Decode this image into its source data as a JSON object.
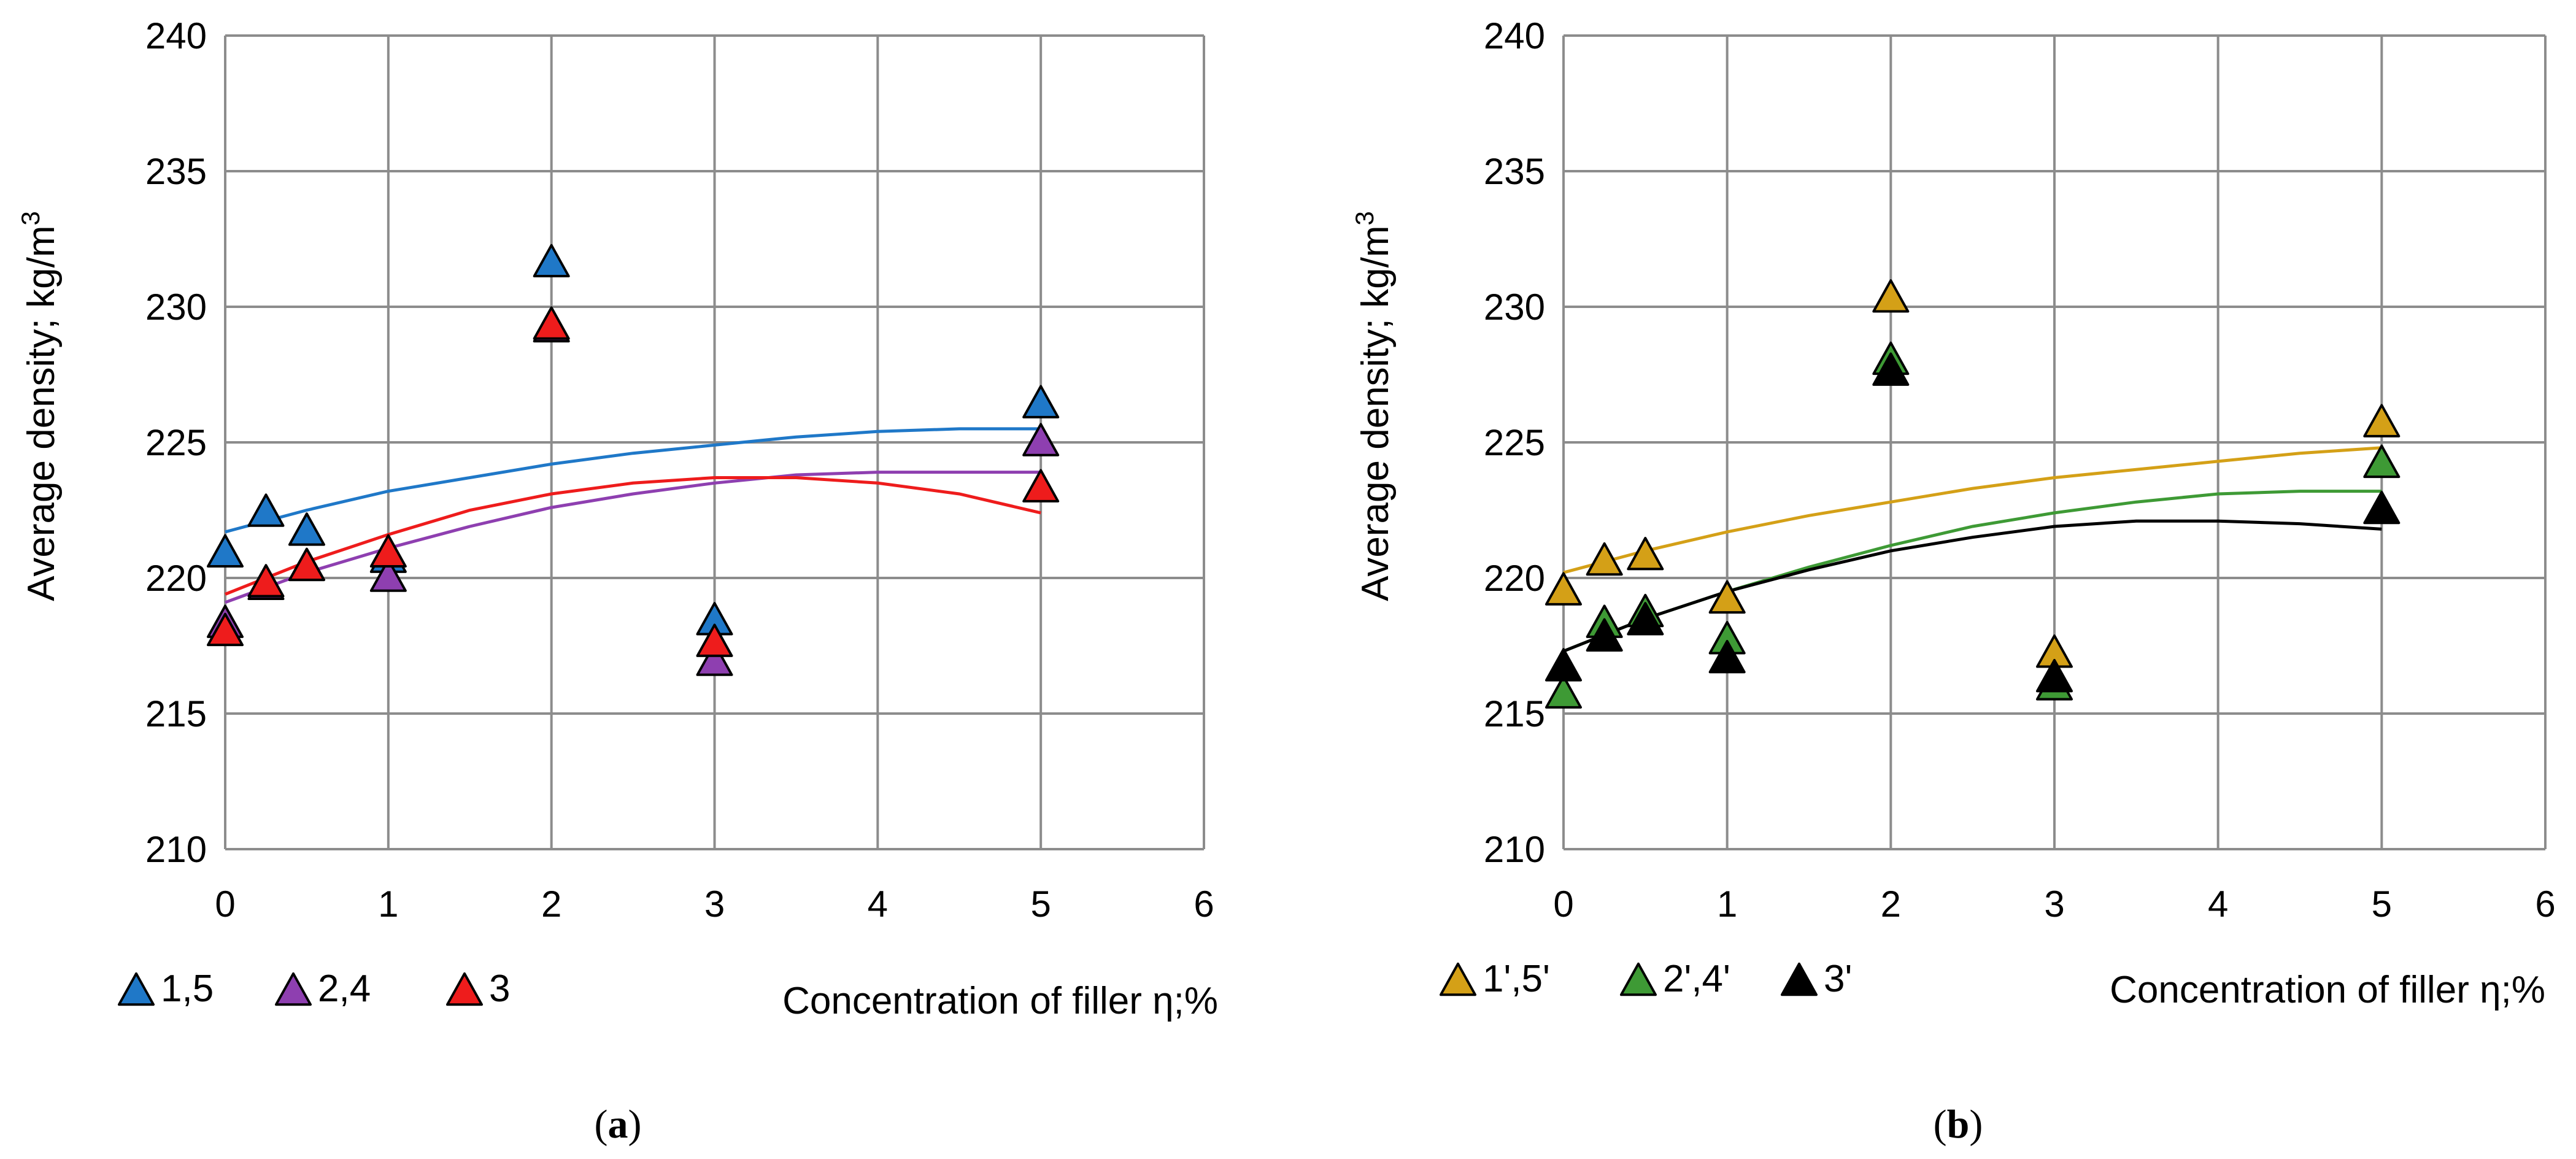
{
  "chart_data": [
    {
      "id": "a",
      "type": "scatter",
      "caption_open": "(",
      "caption_letter": "a",
      "caption_close": ")",
      "ylabel": "Average density; kg/m",
      "ylabel_sup": "3",
      "xlabel": "Concentration of filler η;%",
      "xlim": [
        0,
        6
      ],
      "ylim": [
        210,
        240
      ],
      "xticks": [
        0,
        1,
        2,
        3,
        4,
        5,
        6
      ],
      "yticks": [
        210,
        215,
        220,
        225,
        230,
        235,
        240
      ],
      "grid": true,
      "legend_position": "bottom",
      "series": [
        {
          "name": "1,5",
          "color": "#1f78c8",
          "x": [
            0,
            0.25,
            0.5,
            1,
            2,
            3,
            5
          ],
          "y": [
            221.0,
            222.5,
            221.8,
            220.8,
            231.7,
            218.5,
            226.5
          ],
          "trend_x": [
            0,
            0.5,
            1,
            1.5,
            2,
            2.5,
            3,
            3.5,
            4,
            4.5,
            5
          ],
          "trend_y": [
            221.7,
            222.5,
            223.2,
            223.7,
            224.2,
            224.6,
            224.9,
            225.2,
            225.4,
            225.5,
            225.5
          ]
        },
        {
          "name": "2,4",
          "color": "#8e3fb0",
          "x": [
            0,
            0.25,
            0.5,
            1,
            2,
            3,
            5
          ],
          "y": [
            218.4,
            219.8,
            220.5,
            220.1,
            229.3,
            217.0,
            225.1
          ],
          "trend_x": [
            0,
            0.5,
            1,
            1.5,
            2,
            2.5,
            3,
            3.5,
            4,
            4.5,
            5
          ],
          "trend_y": [
            219.1,
            220.2,
            221.1,
            221.9,
            222.6,
            223.1,
            223.5,
            223.8,
            223.9,
            223.9,
            223.9
          ]
        },
        {
          "name": "3",
          "color": "#ee1c1c",
          "x": [
            0,
            0.25,
            0.5,
            1,
            2,
            3,
            5
          ],
          "y": [
            218.1,
            219.9,
            220.5,
            221.0,
            229.4,
            217.7,
            223.4
          ],
          "trend_x": [
            0,
            0.5,
            1,
            1.5,
            2,
            2.5,
            3,
            3.5,
            4,
            4.5,
            5
          ],
          "trend_y": [
            219.4,
            220.6,
            221.6,
            222.5,
            223.1,
            223.5,
            223.7,
            223.7,
            223.5,
            223.1,
            222.4
          ]
        }
      ]
    },
    {
      "id": "b",
      "type": "scatter",
      "caption_open": "(",
      "caption_letter": "b",
      "caption_close": ")",
      "ylabel": "Average density; kg/m",
      "ylabel_sup": "3",
      "xlabel": "Concentration of filler η;%",
      "xlim": [
        0,
        6
      ],
      "ylim": [
        210,
        240
      ],
      "xticks": [
        0,
        1,
        2,
        3,
        4,
        5,
        6
      ],
      "yticks": [
        210,
        215,
        220,
        225,
        230,
        235,
        240
      ],
      "grid": true,
      "legend_position": "bottom",
      "series": [
        {
          "name": "1',5'",
          "color": "#d4a017",
          "x": [
            0,
            0.25,
            0.5,
            1,
            2,
            3,
            5
          ],
          "y": [
            219.6,
            220.7,
            220.9,
            219.3,
            230.4,
            217.3,
            225.8
          ],
          "trend_x": [
            0,
            0.5,
            1,
            1.5,
            2,
            2.5,
            3,
            3.5,
            4,
            4.5,
            5
          ],
          "trend_y": [
            220.2,
            221.0,
            221.7,
            222.3,
            222.8,
            223.3,
            223.7,
            224.0,
            224.3,
            224.6,
            224.8
          ]
        },
        {
          "name": "2',4'",
          "color": "#3e9a35",
          "x": [
            0,
            0.25,
            0.5,
            1,
            2,
            3,
            5
          ],
          "y": [
            215.8,
            218.4,
            218.8,
            217.8,
            228.1,
            216.1,
            224.3
          ],
          "trend_x": [
            0,
            0.5,
            1,
            1.5,
            2,
            2.5,
            3,
            3.5,
            4,
            4.5,
            5
          ],
          "trend_y": [
            217.3,
            218.5,
            219.5,
            220.4,
            221.2,
            221.9,
            222.4,
            222.8,
            223.1,
            223.2,
            223.2
          ]
        },
        {
          "name": "3'",
          "color": "#000000",
          "x": [
            0,
            0.25,
            0.5,
            1,
            2,
            3,
            5
          ],
          "y": [
            216.8,
            217.9,
            218.5,
            217.1,
            227.7,
            216.4,
            222.6
          ],
          "trend_x": [
            0,
            0.5,
            1,
            1.5,
            2,
            2.5,
            3,
            3.5,
            4,
            4.5,
            5
          ],
          "trend_y": [
            217.3,
            218.5,
            219.5,
            220.3,
            221.0,
            221.5,
            221.9,
            222.1,
            222.1,
            222.0,
            221.8
          ]
        }
      ]
    }
  ]
}
